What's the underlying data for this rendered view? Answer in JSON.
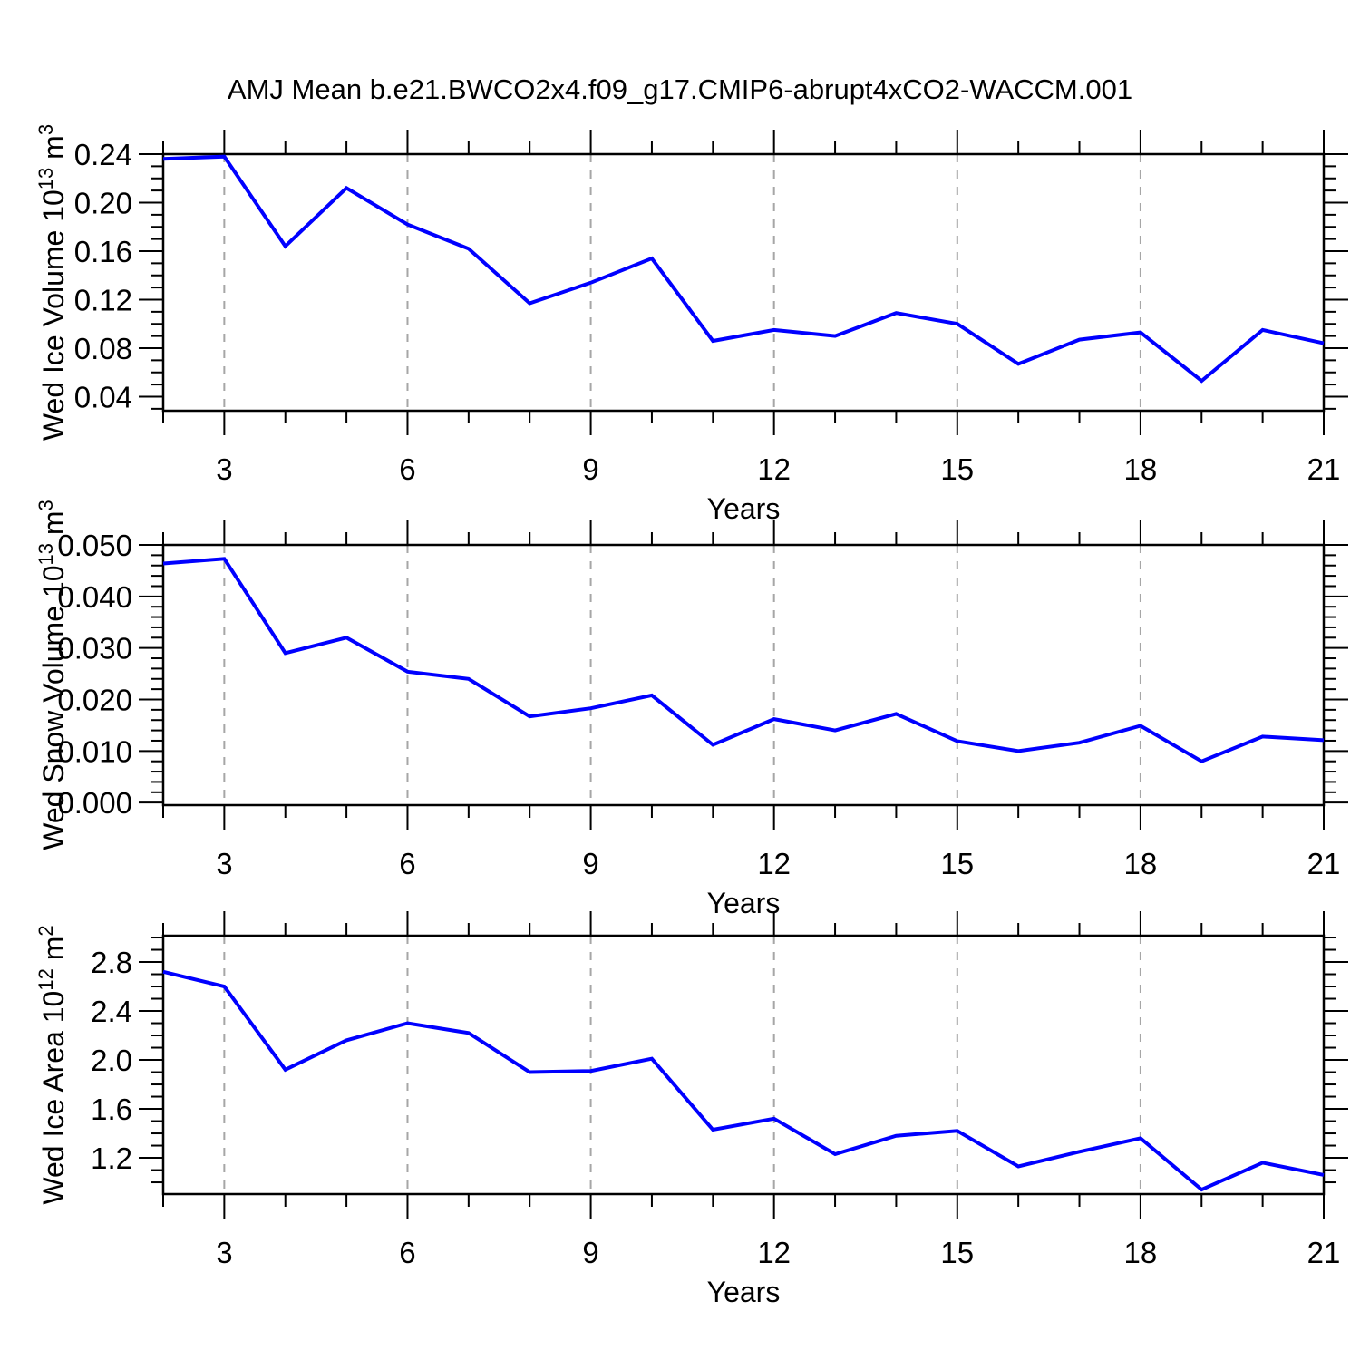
{
  "title": "AMJ Mean b.e21.BWCO2x4.f09_g17.CMIP6-abrupt4xCO2-WACCM.001",
  "colors": {
    "line": "#0000ff",
    "grid": "#a6a6a6",
    "frame": "#000000",
    "text": "#000000"
  },
  "chart_data": [
    {
      "id": "ice-volume",
      "type": "line",
      "xlabel": "Years",
      "ylabel": "Wed Ice Volume 10^13 m^3",
      "ylabel_parts": [
        {
          "t": "Wed Ice Volume 10"
        },
        {
          "s": "13"
        },
        {
          "t": " m"
        },
        {
          "s": "3"
        }
      ],
      "x": [
        2,
        3,
        4,
        5,
        6,
        7,
        8,
        9,
        10,
        11,
        12,
        13,
        14,
        15,
        16,
        17,
        18,
        19,
        20,
        21
      ],
      "values": [
        0.236,
        0.238,
        0.164,
        0.212,
        0.182,
        0.162,
        0.117,
        0.134,
        0.154,
        0.086,
        0.095,
        0.09,
        0.109,
        0.1,
        0.067,
        0.087,
        0.093,
        0.053,
        0.095,
        0.084
      ],
      "xlim": [
        2,
        21
      ],
      "ylim": [
        0.0284,
        0.24
      ],
      "grid_x": [
        3,
        6,
        9,
        12,
        15,
        18
      ],
      "x_major": {
        "ticks": [
          3,
          6,
          9,
          12,
          15,
          18,
          21
        ],
        "labels": [
          "3",
          "6",
          "9",
          "12",
          "15",
          "18",
          "21"
        ]
      },
      "x_minor": [
        2,
        4,
        5,
        7,
        8,
        10,
        11,
        13,
        14,
        16,
        17,
        19,
        20
      ],
      "y_major": {
        "ticks": [
          0.24,
          0.2,
          0.16,
          0.12,
          0.08,
          0.04
        ],
        "labels": [
          "0.24",
          "0.20",
          "0.16",
          "0.12",
          "0.08",
          "0.04"
        ]
      },
      "y_minor_step": 0.01
    },
    {
      "id": "snow-volume",
      "type": "line",
      "xlabel": "Years",
      "ylabel": "Wed Snow Volume 10^13 m^3",
      "ylabel_parts": [
        {
          "t": "Wed Snow Volume 10"
        },
        {
          "s": "13"
        },
        {
          "t": " m"
        },
        {
          "s": "3"
        }
      ],
      "x": [
        2,
        3,
        4,
        5,
        6,
        7,
        8,
        9,
        10,
        11,
        12,
        13,
        14,
        15,
        16,
        17,
        18,
        19,
        20,
        21
      ],
      "values": [
        0.0464,
        0.0473,
        0.029,
        0.032,
        0.0254,
        0.024,
        0.0167,
        0.0183,
        0.0208,
        0.0112,
        0.0162,
        0.014,
        0.0172,
        0.0119,
        0.01,
        0.0116,
        0.0149,
        0.008,
        0.0128,
        0.0121
      ],
      "xlim": [
        2,
        21
      ],
      "ylim": [
        -0.0005,
        0.05
      ],
      "grid_x": [
        3,
        6,
        9,
        12,
        15,
        18
      ],
      "x_major": {
        "ticks": [
          3,
          6,
          9,
          12,
          15,
          18,
          21
        ],
        "labels": [
          "3",
          "6",
          "9",
          "12",
          "15",
          "18",
          "21"
        ]
      },
      "x_minor": [
        2,
        4,
        5,
        7,
        8,
        10,
        11,
        13,
        14,
        16,
        17,
        19,
        20
      ],
      "y_major": {
        "ticks": [
          0.05,
          0.04,
          0.03,
          0.02,
          0.01,
          0.0
        ],
        "labels": [
          "0.050",
          "0.040",
          "0.030",
          "0.020",
          "0.010",
          "0.000"
        ]
      },
      "y_minor_step": 0.002
    },
    {
      "id": "ice-area",
      "type": "line",
      "xlabel": "Years",
      "ylabel": "Wed Ice Area 10^12 m^2",
      "ylabel_parts": [
        {
          "t": "Wed Ice Area 10"
        },
        {
          "s": "12"
        },
        {
          "t": " m"
        },
        {
          "s": "2"
        }
      ],
      "x": [
        2,
        3,
        4,
        5,
        6,
        7,
        8,
        9,
        10,
        11,
        12,
        13,
        14,
        15,
        16,
        17,
        18,
        19,
        20,
        21
      ],
      "values": [
        2.72,
        2.6,
        1.92,
        2.16,
        2.3,
        2.22,
        1.9,
        1.91,
        2.01,
        1.43,
        1.52,
        1.23,
        1.38,
        1.42,
        1.13,
        1.25,
        1.36,
        0.94,
        1.16,
        1.06
      ],
      "xlim": [
        2,
        21
      ],
      "ylim": [
        0.904,
        3.015
      ],
      "grid_x": [
        3,
        6,
        9,
        12,
        15,
        18
      ],
      "x_major": {
        "ticks": [
          3,
          6,
          9,
          12,
          15,
          18,
          21
        ],
        "labels": [
          "3",
          "6",
          "9",
          "12",
          "15",
          "18",
          "21"
        ]
      },
      "x_minor": [
        2,
        4,
        5,
        7,
        8,
        10,
        11,
        13,
        14,
        16,
        17,
        19,
        20
      ],
      "y_major": {
        "ticks": [
          2.8,
          2.4,
          2.0,
          1.6,
          1.2
        ],
        "labels": [
          "2.8",
          "2.4",
          "2.0",
          "1.6",
          "1.2"
        ]
      },
      "y_minor_step": 0.1
    }
  ]
}
